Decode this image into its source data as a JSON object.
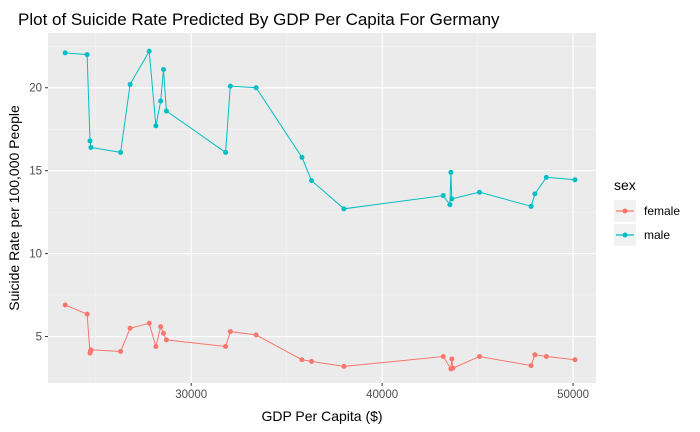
{
  "chart_data": {
    "type": "line",
    "title": "Plot of Suicide Rate Predicted By GDP Per Capita For Germany",
    "xlabel": "GDP Per Capita ($)",
    "ylabel": "Suicide Rate per 100,000 People",
    "xlim": [
      22500,
      51200
    ],
    "ylim": [
      2.2,
      23.3
    ],
    "x_ticks": [
      30000,
      40000,
      50000
    ],
    "y_ticks": [
      5,
      10,
      15,
      20
    ],
    "x_tick_labels": [
      "30000",
      "40000",
      "50000"
    ],
    "y_tick_labels": [
      "5",
      "10",
      "15",
      "20"
    ],
    "grid": true,
    "legend_title": "sex",
    "legend_position": "right",
    "series": [
      {
        "name": "female",
        "color": "#F8766D",
        "points": [
          [
            23400,
            6.9
          ],
          [
            24550,
            6.35
          ],
          [
            24700,
            4.0
          ],
          [
            24720,
            4.1
          ],
          [
            24750,
            4.2
          ],
          [
            26300,
            4.1
          ],
          [
            26800,
            5.5
          ],
          [
            27800,
            5.8
          ],
          [
            28150,
            4.4
          ],
          [
            28400,
            5.6
          ],
          [
            28550,
            5.2
          ],
          [
            28700,
            4.8
          ],
          [
            31800,
            4.4
          ],
          [
            32050,
            5.3
          ],
          [
            33400,
            5.1
          ],
          [
            35800,
            3.6
          ],
          [
            36300,
            3.5
          ],
          [
            38000,
            3.2
          ],
          [
            43200,
            3.8
          ],
          [
            43600,
            3.05
          ],
          [
            43650,
            3.65
          ],
          [
            43700,
            3.1
          ],
          [
            45100,
            3.8
          ],
          [
            47800,
            3.25
          ],
          [
            48000,
            3.9
          ],
          [
            48600,
            3.8
          ],
          [
            50100,
            3.6
          ]
        ]
      },
      {
        "name": "male",
        "color": "#00BFC4",
        "points": [
          [
            23400,
            22.1
          ],
          [
            24550,
            22.0
          ],
          [
            24700,
            16.8
          ],
          [
            24750,
            16.4
          ],
          [
            26300,
            16.1
          ],
          [
            26800,
            20.2
          ],
          [
            27800,
            22.2
          ],
          [
            28150,
            17.7
          ],
          [
            28400,
            19.2
          ],
          [
            28550,
            21.1
          ],
          [
            28700,
            18.6
          ],
          [
            31800,
            16.1
          ],
          [
            32050,
            20.1
          ],
          [
            33400,
            20.0
          ],
          [
            35800,
            15.8
          ],
          [
            36300,
            14.4
          ],
          [
            38000,
            12.7
          ],
          [
            43200,
            13.5
          ],
          [
            43550,
            12.95
          ],
          [
            43600,
            14.9
          ],
          [
            43650,
            13.3
          ],
          [
            45100,
            13.7
          ],
          [
            47800,
            12.85
          ],
          [
            48000,
            13.6
          ],
          [
            48600,
            14.6
          ],
          [
            50100,
            14.45
          ]
        ]
      }
    ]
  }
}
